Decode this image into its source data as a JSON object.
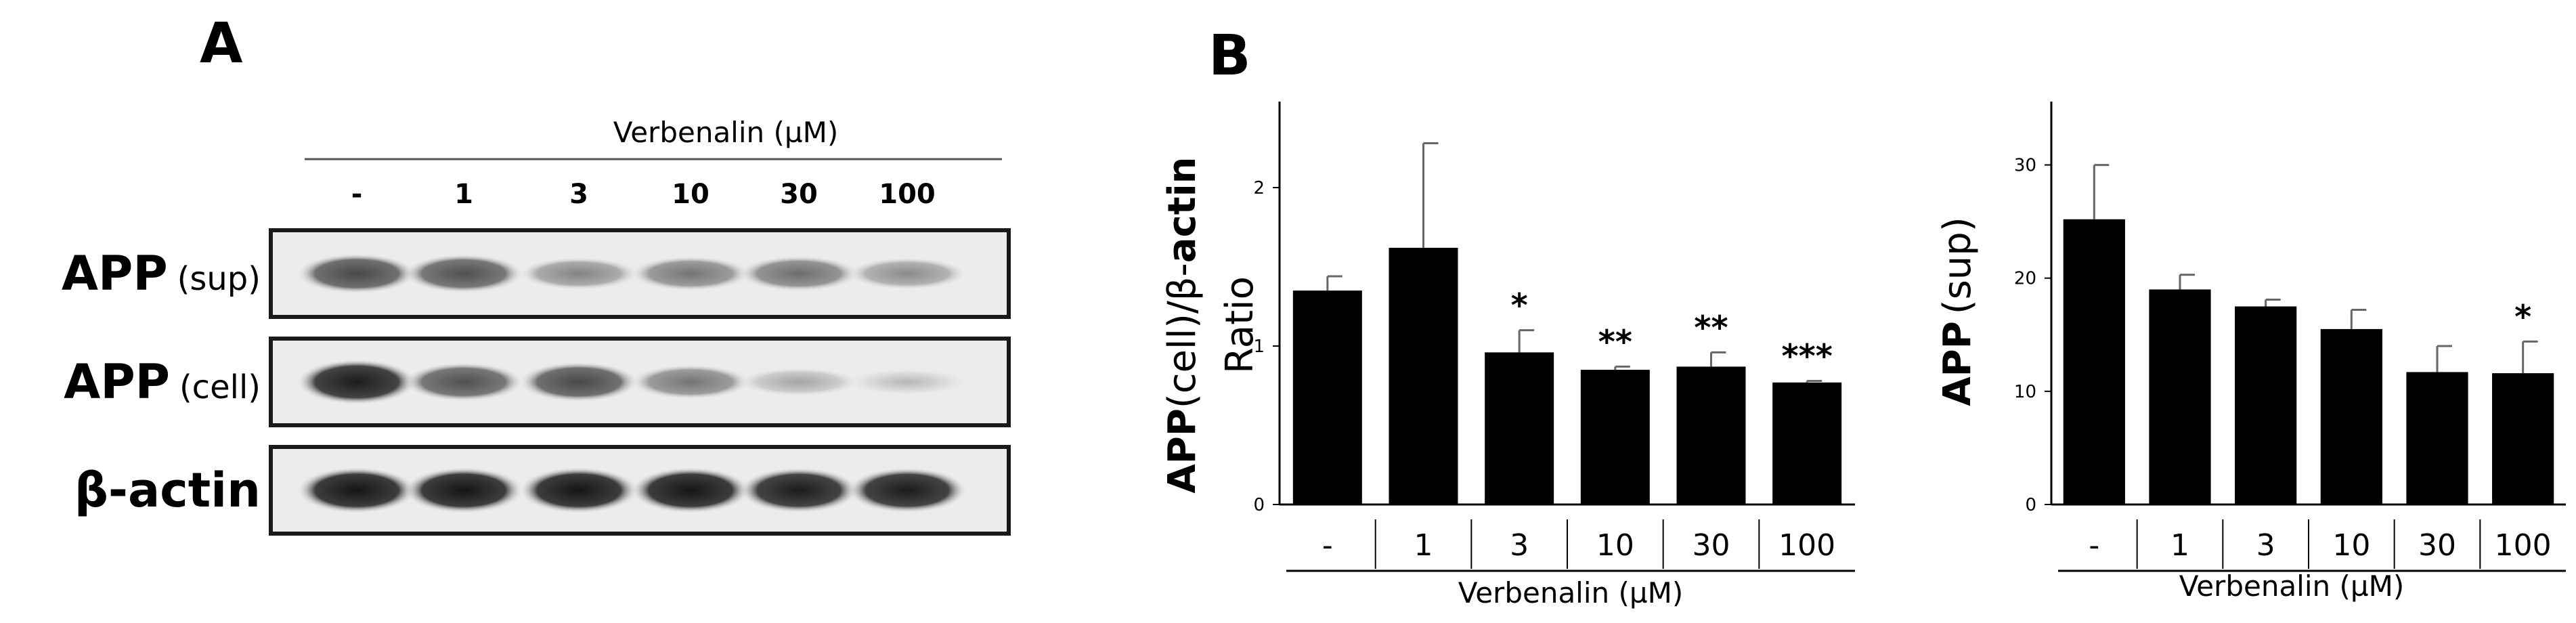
{
  "panels": {
    "a": "A",
    "b": "B"
  },
  "blot": {
    "header": "Verbenalin (µM)",
    "lanes": [
      "-",
      "1",
      "3",
      "10",
      "30",
      "100"
    ],
    "rows": [
      {
        "main": "APP",
        "sub": "(sup)",
        "intensity": [
          0.72,
          0.68,
          0.45,
          0.52,
          0.55,
          0.42
        ]
      },
      {
        "main": "APP",
        "sub": "(cell)",
        "intensity": [
          0.92,
          0.68,
          0.72,
          0.52,
          0.3,
          0.22
        ]
      },
      {
        "main": "β-actin",
        "sub": "",
        "intensity": [
          0.95,
          0.95,
          0.95,
          0.95,
          0.92,
          0.92
        ]
      }
    ]
  },
  "chart_data": [
    {
      "type": "bar",
      "categories": [
        "-",
        "1",
        "3",
        "10",
        "30",
        "100"
      ],
      "values": [
        1.35,
        1.62,
        0.96,
        0.85,
        0.87,
        0.77
      ],
      "errors": [
        0.09,
        0.66,
        0.14,
        0.02,
        0.09,
        0.01
      ],
      "significance": [
        "",
        "",
        "*",
        "**",
        "**",
        "***"
      ],
      "ylabel_bold_1": "APP",
      "ylabel_normal": "(cell)/β-",
      "ylabel_bold_2": "actin",
      "ylabel_line2": "Ratio",
      "xlabel": "Verbenalin (µM)",
      "ylim": [
        0,
        2.5
      ],
      "yticks": [
        "0",
        "1",
        "2"
      ],
      "bar_color": "#000000"
    },
    {
      "type": "bar",
      "categories": [
        "-",
        "1",
        "3",
        "10",
        "30",
        "100"
      ],
      "values": [
        25.2,
        19.0,
        17.5,
        15.5,
        11.7,
        11.6
      ],
      "errors": [
        4.8,
        1.3,
        0.6,
        1.7,
        2.3,
        2.8
      ],
      "significance": [
        "",
        "",
        "",
        "",
        "",
        "*"
      ],
      "ylabel_bold": "APP",
      "ylabel_normal": "(sup)",
      "xlabel": "Verbenalin (µM)",
      "ylim": [
        0,
        35
      ],
      "yticks": [
        "0",
        "10",
        "20",
        "30"
      ],
      "bar_color": "#000000"
    }
  ]
}
